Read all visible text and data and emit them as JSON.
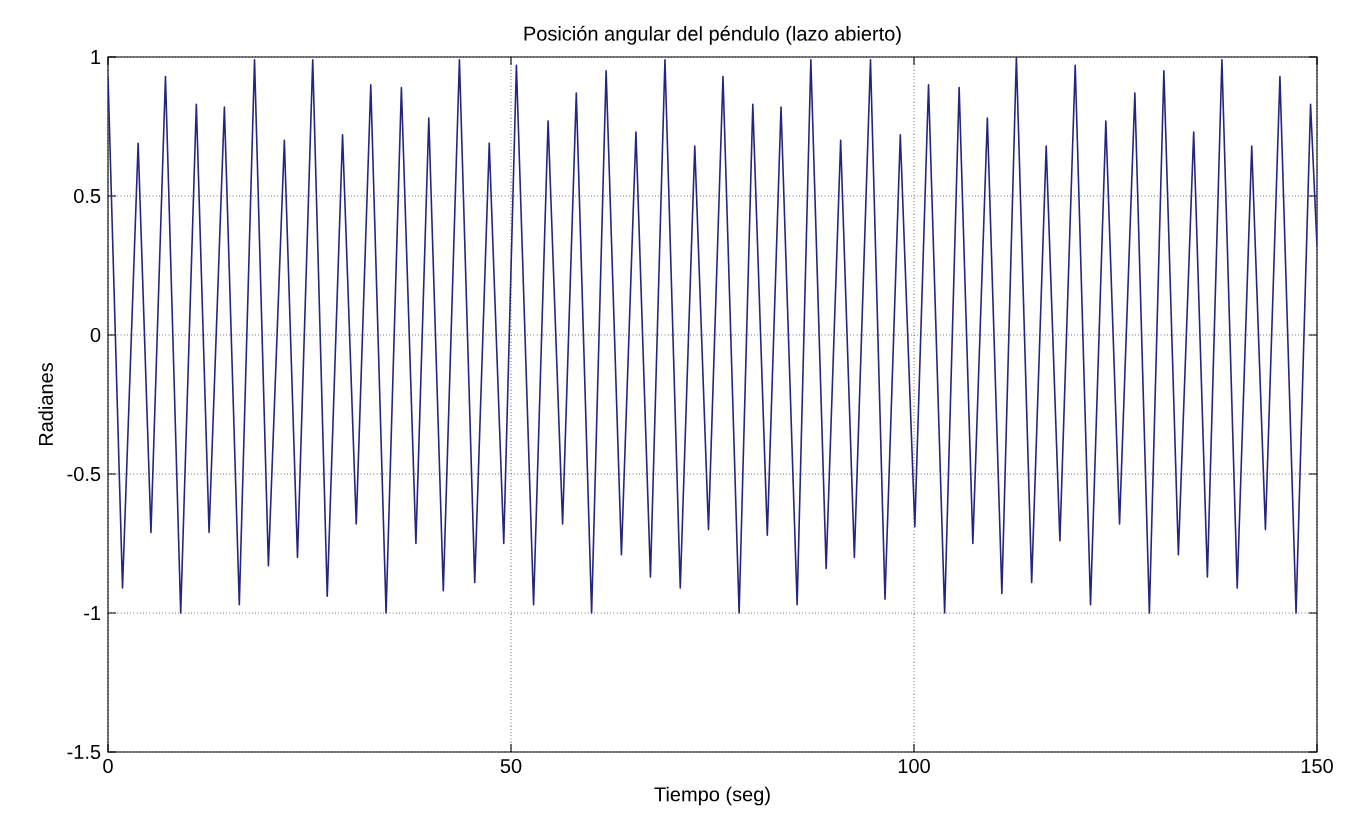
{
  "chart_data": {
    "type": "line",
    "title": "Posición angular del péndulo (lazo abierto)",
    "xlabel": "Tiempo (seg)",
    "ylabel": "Radianes",
    "xlim": [
      0,
      150
    ],
    "ylim": [
      -1.5,
      1
    ],
    "xticks": [
      0,
      50,
      100,
      150
    ],
    "yticks": [
      -1.5,
      -1,
      -0.5,
      0,
      0.5,
      1
    ],
    "grid": true,
    "series": [
      {
        "color": "#25257f",
        "x": [
          0,
          1.8,
          3.74,
          5.33,
          7.13,
          9.02,
          10.96,
          12.54,
          14.44,
          16.29,
          18.18,
          19.9,
          21.88,
          23.51,
          25.4,
          27.2,
          29.1,
          30.8,
          32.6,
          34.5,
          36.4,
          38.2,
          39.8,
          41.6,
          43.6,
          45.5,
          47.3,
          49.1,
          50.67,
          52.8,
          54.6,
          56.4,
          58.1,
          60.0,
          61.8,
          63.7,
          65.5,
          67.3,
          69.1,
          71.0,
          72.8,
          74.5,
          76.3,
          78.3,
          80.0,
          81.8,
          83.5,
          85.5,
          87.2,
          89.1,
          90.9,
          92.6,
          94.6,
          96.4,
          98.3,
          100.1,
          101.8,
          103.8,
          105.6,
          107.3,
          109.1,
          110.9,
          112.7,
          114.6,
          116.4,
          118.1,
          120.0,
          121.9,
          123.8,
          125.5,
          127.4,
          129.2,
          131.0,
          132.8,
          134.7,
          136.4,
          138.2,
          140.1,
          141.9,
          143.6,
          145.4,
          147.4,
          149.2,
          150
        ],
        "values": [
          0.93,
          -0.91,
          0.69,
          -0.71,
          0.93,
          -1.0,
          0.83,
          -0.71,
          0.82,
          -0.97,
          0.99,
          -0.83,
          0.7,
          -0.8,
          0.99,
          -0.94,
          0.72,
          -0.68,
          0.9,
          -1.0,
          0.89,
          -0.75,
          0.78,
          -0.92,
          0.99,
          -0.89,
          0.69,
          -0.75,
          0.97,
          -0.97,
          0.77,
          -0.68,
          0.87,
          -1.0,
          0.95,
          -0.79,
          0.73,
          -0.87,
          0.99,
          -0.91,
          0.68,
          -0.7,
          0.93,
          -1.0,
          0.83,
          -0.72,
          0.82,
          -0.97,
          0.99,
          -0.84,
          0.7,
          -0.8,
          0.99,
          -0.95,
          0.72,
          -0.69,
          0.9,
          -1.0,
          0.89,
          -0.75,
          0.78,
          -0.93,
          1.0,
          -0.89,
          0.68,
          -0.74,
          0.97,
          -0.97,
          0.77,
          -0.68,
          0.87,
          -1.0,
          0.95,
          -0.79,
          0.73,
          -0.87,
          0.99,
          -0.91,
          0.68,
          -0.7,
          0.93,
          -1.0,
          0.83,
          0.32
        ]
      }
    ]
  }
}
